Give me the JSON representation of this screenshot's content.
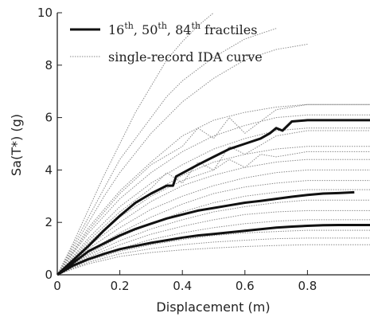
{
  "chart_data": {
    "type": "line",
    "xlabel": "Displacement (m)",
    "ylabel": "Sa(T*) (g)",
    "xlim": [
      0,
      1
    ],
    "ylim": [
      0,
      10
    ],
    "xticks": [
      "0",
      "0.2",
      "0.4",
      "0.6",
      "0.8"
    ],
    "yticks": [
      "0",
      "2",
      "4",
      "6",
      "8",
      "10"
    ],
    "grid": false,
    "legend_placement": "top-left",
    "legend": {
      "fractiles_parts": [
        "16",
        "th",
        ", 50",
        "th",
        ", 84",
        "th",
        " fractiles"
      ],
      "single_record": "single-record IDA curve"
    },
    "colors": {
      "fractile": "#111111",
      "single_record": "#8a8a8a",
      "axis": "#222222"
    },
    "series": [
      {
        "role": "fractile-84th",
        "style": "thick",
        "x": [
          0,
          0.05,
          0.1,
          0.15,
          0.2,
          0.25,
          0.3,
          0.35,
          0.37,
          0.38,
          0.45,
          0.5,
          0.55,
          0.6,
          0.65,
          0.68,
          0.7,
          0.72,
          0.75,
          0.8,
          0.9,
          1.0
        ],
        "y": [
          0,
          0.55,
          1.1,
          1.7,
          2.25,
          2.75,
          3.1,
          3.4,
          3.4,
          3.75,
          4.2,
          4.5,
          4.8,
          5.0,
          5.2,
          5.4,
          5.6,
          5.5,
          5.85,
          5.9,
          5.9,
          5.9
        ]
      },
      {
        "role": "fractile-50th",
        "style": "thick",
        "x": [
          0,
          0.05,
          0.1,
          0.15,
          0.2,
          0.25,
          0.3,
          0.35,
          0.4,
          0.45,
          0.5,
          0.55,
          0.6,
          0.65,
          0.7,
          0.75,
          0.8,
          0.85,
          0.9,
          0.95
        ],
        "y": [
          0,
          0.45,
          0.9,
          1.2,
          1.5,
          1.75,
          1.95,
          2.15,
          2.3,
          2.45,
          2.55,
          2.65,
          2.75,
          2.82,
          2.9,
          2.98,
          3.05,
          3.1,
          3.12,
          3.15
        ]
      },
      {
        "role": "fractile-16th",
        "style": "thick",
        "x": [
          0,
          0.05,
          0.1,
          0.15,
          0.2,
          0.25,
          0.3,
          0.35,
          0.4,
          0.45,
          0.5,
          0.55,
          0.6,
          0.65,
          0.7,
          0.75,
          0.8,
          0.85,
          0.9,
          1.0
        ],
        "y": [
          0,
          0.35,
          0.6,
          0.8,
          0.98,
          1.1,
          1.22,
          1.32,
          1.42,
          1.5,
          1.56,
          1.62,
          1.68,
          1.74,
          1.8,
          1.84,
          1.87,
          1.89,
          1.9,
          1.9
        ]
      },
      {
        "role": "single-record",
        "style": "dotted",
        "x": [
          0,
          0.05,
          0.1,
          0.15,
          0.2,
          0.25,
          0.3,
          0.35,
          0.4,
          0.45,
          0.5
        ],
        "y": [
          0,
          1.2,
          2.5,
          3.8,
          5.0,
          6.2,
          7.2,
          8.2,
          8.9,
          9.5,
          10.0
        ]
      },
      {
        "role": "single-record",
        "style": "dotted",
        "x": [
          0,
          0.05,
          0.1,
          0.15,
          0.2,
          0.3,
          0.4,
          0.5,
          0.6,
          0.7,
          0.8
        ],
        "y": [
          0,
          1.0,
          2.0,
          3.0,
          3.9,
          5.4,
          6.6,
          7.5,
          8.2,
          8.6,
          8.8
        ]
      },
      {
        "role": "single-record",
        "style": "dotted",
        "x": [
          0,
          0.05,
          0.1,
          0.2,
          0.3,
          0.4,
          0.5,
          0.6,
          0.7,
          0.8,
          1.0
        ],
        "y": [
          0,
          0.9,
          1.8,
          3.2,
          4.3,
          5.3,
          5.9,
          6.2,
          6.4,
          6.5,
          6.5
        ]
      },
      {
        "role": "single-record",
        "style": "dotted",
        "x": [
          0,
          0.05,
          0.1,
          0.2,
          0.3,
          0.4,
          0.5,
          0.6,
          0.7,
          0.8,
          1.0
        ],
        "y": [
          0,
          0.8,
          1.6,
          2.9,
          3.9,
          4.7,
          5.3,
          5.7,
          6.0,
          6.1,
          6.1
        ]
      },
      {
        "role": "single-record",
        "style": "dotted",
        "x": [
          0,
          0.05,
          0.1,
          0.2,
          0.3,
          0.4,
          0.5,
          0.6,
          0.7,
          0.8,
          1.0
        ],
        "y": [
          0,
          0.7,
          1.4,
          2.6,
          3.5,
          4.2,
          4.8,
          5.2,
          5.5,
          5.6,
          5.6
        ]
      },
      {
        "role": "single-record",
        "style": "dotted",
        "x": [
          0,
          0.05,
          0.1,
          0.2,
          0.3,
          0.4,
          0.5,
          0.6,
          0.7,
          0.8,
          1.0
        ],
        "y": [
          0,
          0.6,
          1.2,
          2.3,
          3.1,
          3.8,
          4.3,
          4.6,
          4.8,
          4.9,
          4.9
        ]
      },
      {
        "role": "single-record",
        "style": "dotted",
        "x": [
          0,
          0.05,
          0.1,
          0.2,
          0.3,
          0.4,
          0.5,
          0.6,
          0.7,
          0.8,
          1.0
        ],
        "y": [
          0,
          0.55,
          1.1,
          2.0,
          2.8,
          3.4,
          3.8,
          4.1,
          4.3,
          4.4,
          4.4
        ]
      },
      {
        "role": "single-record",
        "style": "dotted",
        "x": [
          0,
          0.05,
          0.1,
          0.2,
          0.3,
          0.4,
          0.5,
          0.6,
          0.7,
          0.8,
          1.0
        ],
        "y": [
          0,
          0.5,
          1.0,
          1.8,
          2.5,
          3.0,
          3.4,
          3.7,
          3.9,
          4.0,
          4.0
        ]
      },
      {
        "role": "single-record",
        "style": "dotted",
        "x": [
          0,
          0.05,
          0.1,
          0.2,
          0.3,
          0.4,
          0.5,
          0.6,
          0.7,
          0.8,
          1.0
        ],
        "y": [
          0,
          0.45,
          0.9,
          1.6,
          2.2,
          2.7,
          3.1,
          3.35,
          3.5,
          3.6,
          3.6
        ]
      },
      {
        "role": "single-record",
        "style": "dotted",
        "x": [
          0,
          0.05,
          0.1,
          0.2,
          0.3,
          0.4,
          0.5,
          0.6,
          0.7,
          0.8,
          1.0
        ],
        "y": [
          0,
          0.4,
          0.8,
          1.45,
          1.95,
          2.4,
          2.75,
          3.0,
          3.15,
          3.25,
          3.25
        ]
      },
      {
        "role": "single-record",
        "style": "dotted",
        "x": [
          0,
          0.05,
          0.1,
          0.2,
          0.3,
          0.4,
          0.5,
          0.6,
          0.7,
          0.8,
          1.0
        ],
        "y": [
          0,
          0.38,
          0.75,
          1.3,
          1.75,
          2.1,
          2.4,
          2.6,
          2.75,
          2.85,
          2.85
        ]
      },
      {
        "role": "single-record",
        "style": "dotted",
        "x": [
          0,
          0.05,
          0.1,
          0.2,
          0.3,
          0.4,
          0.5,
          0.6,
          0.7,
          0.8,
          1.0
        ],
        "y": [
          0,
          0.35,
          0.68,
          1.15,
          1.55,
          1.85,
          2.1,
          2.3,
          2.4,
          2.45,
          2.45
        ]
      },
      {
        "role": "single-record",
        "style": "dotted",
        "x": [
          0,
          0.05,
          0.1,
          0.2,
          0.3,
          0.4,
          0.5,
          0.6,
          0.7,
          0.8,
          1.0
        ],
        "y": [
          0,
          0.3,
          0.6,
          1.0,
          1.35,
          1.6,
          1.8,
          1.95,
          2.05,
          2.1,
          2.1
        ]
      },
      {
        "role": "single-record",
        "style": "dotted",
        "x": [
          0,
          0.05,
          0.1,
          0.2,
          0.3,
          0.4,
          0.5,
          0.6,
          0.7,
          0.8,
          1.0
        ],
        "y": [
          0,
          0.28,
          0.55,
          0.9,
          1.15,
          1.35,
          1.5,
          1.6,
          1.65,
          1.7,
          1.7
        ]
      },
      {
        "role": "single-record",
        "style": "dotted",
        "x": [
          0,
          0.05,
          0.1,
          0.2,
          0.3,
          0.4,
          0.5,
          0.6,
          0.7,
          0.8,
          1.0
        ],
        "y": [
          0,
          0.25,
          0.48,
          0.8,
          1.0,
          1.15,
          1.25,
          1.32,
          1.38,
          1.4,
          1.4
        ]
      },
      {
        "role": "single-record",
        "style": "dotted",
        "x": [
          0,
          0.05,
          0.1,
          0.2,
          0.3,
          0.4,
          0.5,
          0.6,
          0.7,
          0.8,
          1.0
        ],
        "y": [
          0,
          0.22,
          0.42,
          0.7,
          0.85,
          0.95,
          1.02,
          1.08,
          1.12,
          1.15,
          1.15
        ]
      },
      {
        "role": "single-record",
        "style": "dotted",
        "x": [
          0,
          0.05,
          0.1,
          0.15,
          0.2,
          0.3,
          0.35,
          0.4,
          0.5,
          0.6,
          0.7
        ],
        "y": [
          0,
          1.1,
          2.2,
          3.3,
          4.4,
          6.0,
          6.8,
          7.4,
          8.3,
          9.0,
          9.4
        ]
      },
      {
        "role": "single-record",
        "style": "dotted",
        "x": [
          0,
          0.05,
          0.1,
          0.2,
          0.3,
          0.4,
          0.45,
          0.5,
          0.55,
          0.6,
          0.7,
          0.8,
          0.9,
          1.0
        ],
        "y": [
          0,
          0.85,
          1.7,
          3.1,
          4.2,
          4.9,
          5.6,
          5.2,
          6.0,
          5.4,
          6.3,
          6.5,
          6.5,
          6.5
        ]
      },
      {
        "role": "single-record",
        "style": "dotted",
        "x": [
          0,
          0.05,
          0.1,
          0.2,
          0.3,
          0.35,
          0.4,
          0.45,
          0.5,
          0.55,
          0.6,
          0.7,
          0.8,
          1.0
        ],
        "y": [
          0,
          0.65,
          1.3,
          2.4,
          3.3,
          3.9,
          3.5,
          4.3,
          4.0,
          4.9,
          4.6,
          5.3,
          5.5,
          5.5
        ]
      },
      {
        "role": "single-record",
        "style": "dotted",
        "x": [
          0,
          0.05,
          0.1,
          0.2,
          0.3,
          0.4,
          0.5,
          0.55,
          0.6,
          0.65,
          0.7,
          0.8,
          1.0
        ],
        "y": [
          0,
          0.6,
          1.2,
          2.2,
          3.0,
          3.6,
          4.0,
          4.4,
          4.1,
          4.6,
          4.5,
          4.7,
          4.7
        ]
      }
    ]
  }
}
